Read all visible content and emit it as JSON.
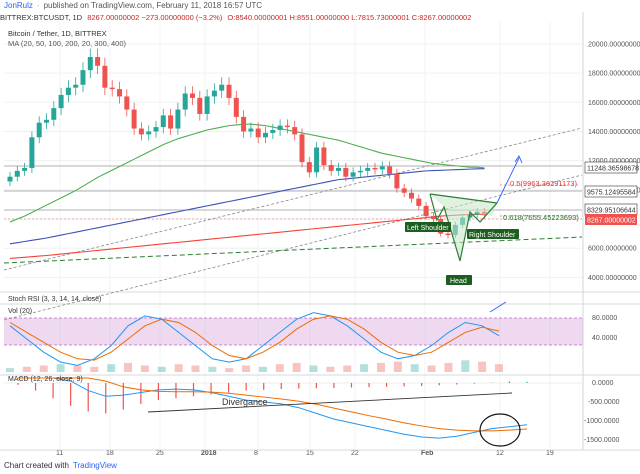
{
  "header": {
    "author": "JonRulz",
    "published": "published on TradingView.com, February 11, 2018 16:57 UTC"
  },
  "symbol_line": {
    "symbol": "BITTREX:BTCUSDT, 1D",
    "change": "8267.00000002 −273.00000000 (−3.2%)",
    "ohlc": "O:8540.00000001 H:8551.00000000 L:7815.73000001 C:8267.00000002"
  },
  "main_pane": {
    "title": "Bitcoin / Tether, 1D, BITTREX",
    "ma_label": "MA (20, 50, 100, 200, 20, 300, 400)",
    "price_labels": [
      "11248.36598678",
      "9575.12495584",
      "8329.95106644",
      "8267.00000002"
    ],
    "fib_labels": [
      "0.5(9963.36291173)",
      "0.618(7655.45223693)"
    ],
    "pattern_labels": {
      "left": "Left Shoulder",
      "head": "Head",
      "right": "Right Shoulder"
    },
    "colors": {
      "up": "#26a69a",
      "down": "#ef5350",
      "ma_green": "#4caf50",
      "ma_blue": "#3f51b5",
      "ma_red": "#f44336"
    }
  },
  "stoch_pane": {
    "label": "Stoch RSI (3, 3, 14, 14, close)",
    "ticks": [
      "80.0000",
      "40.0000"
    ]
  },
  "vol_pane": {
    "label": "Vol (20)"
  },
  "macd_pane": {
    "label": "MACD (12, 26, close, 9)",
    "annotation": "Divergance",
    "ticks": [
      "0.0000",
      "-500.0000",
      "-1000.0000",
      "-1500.0000"
    ]
  },
  "footer": {
    "text": "Chart created with",
    "brand": "TradingView"
  },
  "chart_data": {
    "type": "line",
    "title": "Bitcoin / Tether, 1D, BITTREX",
    "ylim": [
      3000,
      21500
    ],
    "y_ticks": [
      "20000.00000000",
      "18000.00000000",
      "16000.00000000",
      "14000.00000000",
      "12000.00000000",
      "10000.00000000",
      "8000.00000000",
      "6000.00000000",
      "4000.00000000"
    ],
    "x_ticks": [
      "11",
      "18",
      "25",
      "2018",
      "8",
      "15",
      "22",
      "Feb",
      "12",
      "19"
    ],
    "series": [
      {
        "name": "Bitcoin / Tether",
        "values": [
          10900,
          11300,
          11500,
          13600,
          14600,
          14800,
          15600,
          16500,
          17000,
          17200,
          18200,
          19100,
          18500,
          17000,
          16900,
          16400,
          15500,
          14200,
          13800,
          14000,
          14300,
          15100,
          14200,
          15500,
          16600,
          16300,
          15200,
          16400,
          16800,
          17200,
          16300,
          15000,
          14000,
          14200,
          13600,
          13900,
          14100,
          14400,
          14300,
          13800,
          11900,
          11200,
          12900,
          11700,
          11300,
          11500,
          10900,
          11200,
          11300,
          11500,
          11400,
          11600,
          11100,
          10100,
          9800,
          9400,
          8900,
          8200,
          8000,
          7000,
          6900,
          7600,
          8100,
          8300,
          8500,
          8267
        ]
      },
      {
        "name": "MA 50",
        "values": [
          7800,
          8000,
          8200,
          8450,
          8700,
          8950,
          9200,
          9450,
          9700,
          9950,
          10250,
          10550,
          10850,
          11100,
          11350,
          11600,
          11850,
          12100,
          12350,
          12600,
          12850,
          13100,
          13300,
          13500,
          13650,
          13800,
          13950,
          14100,
          14200,
          14300,
          14400,
          14450,
          14500,
          14500,
          14450,
          14400,
          14300,
          14200,
          14100,
          14000,
          13900,
          13800,
          13700,
          13600,
          13500,
          13400,
          13250,
          13100,
          12950,
          12800,
          12650,
          12500,
          12400,
          12300,
          12200,
          12100,
          12000,
          11900,
          11800,
          11750,
          11700,
          11650,
          11600,
          11550,
          11550,
          11500
        ]
      },
      {
        "name": "MA 100",
        "values": [
          6300,
          6380,
          6460,
          6540,
          6620,
          6700,
          6800,
          6900,
          7000,
          7100,
          7200,
          7300,
          7400,
          7500,
          7600,
          7700,
          7800,
          7900,
          8000,
          8100,
          8200,
          8300,
          8400,
          8500,
          8600,
          8700,
          8800,
          8900,
          9000,
          9100,
          9200,
          9300,
          9400,
          9500,
          9600,
          9700,
          9800,
          9900,
          10000,
          10100,
          10200,
          10300,
          10400,
          10500,
          10600,
          10700,
          10750,
          10800,
          10850,
          10900,
          10950,
          11000,
          11050,
          11100,
          11150,
          11200,
          11250,
          11300,
          11320,
          11340,
          11360,
          11380,
          11400,
          11420,
          11440,
          11450
        ]
      },
      {
        "name": "MA 200",
        "values": [
          5300,
          5340,
          5380,
          5420,
          5460,
          5500,
          5550,
          5600,
          5650,
          5700,
          5750,
          5800,
          5850,
          5900,
          5950,
          6000,
          6050,
          6100,
          6150,
          6200,
          6250,
          6300,
          6350,
          6400,
          6450,
          6500,
          6550,
          6600,
          6650,
          6700,
          6750,
          6800,
          6850,
          6900,
          6950,
          7000,
          7050,
          7100,
          7150,
          7200,
          7250,
          7300,
          7350,
          7400,
          7450,
          7500,
          7550,
          7600,
          7650,
          7700,
          7750,
          7800,
          7850,
          7900,
          7950,
          8000,
          8050,
          8100,
          8150,
          8200,
          8230,
          8260,
          8290,
          8310,
          8320,
          8330
        ]
      }
    ],
    "stoch_rsi": {
      "k": [
        70,
        50,
        30,
        15,
        10,
        20,
        40,
        70,
        85,
        80,
        60,
        40,
        20,
        15,
        20,
        40,
        60,
        80,
        90,
        85,
        70,
        50,
        30,
        20,
        25,
        40,
        60,
        75,
        70,
        55
      ],
      "d": [
        75,
        60,
        45,
        30,
        20,
        18,
        30,
        50,
        70,
        80,
        75,
        60,
        40,
        25,
        20,
        30,
        45,
        65,
        80,
        85,
        80,
        65,
        45,
        30,
        25,
        30,
        45,
        60,
        68,
        62
      ]
    },
    "volume": [
      3,
      4,
      5,
      6,
      5,
      4,
      6,
      7,
      5,
      4,
      6,
      5,
      4,
      3,
      5,
      4,
      6,
      7,
      5,
      4,
      5,
      6,
      7,
      8,
      6,
      5,
      7,
      9,
      8,
      6
    ],
    "macd": {
      "histogram": [
        -50,
        -200,
        -400,
        -600,
        -750,
        -800,
        -700,
        -550,
        -450,
        -400,
        -350,
        -300,
        -250,
        -200,
        -180,
        -160,
        -150,
        -140,
        -130,
        -120,
        -110,
        -100,
        -90,
        -80,
        -60,
        -40,
        -20,
        10,
        40,
        30
      ],
      "macd": [
        900,
        650,
        350,
        50,
        -200,
        -350,
        -320,
        -250,
        -180,
        -160,
        -180,
        -250,
        -350,
        -450,
        -500,
        -550,
        -650,
        -800,
        -950,
        -1050,
        -1150,
        -1250,
        -1350,
        -1420,
        -1450,
        -1400,
        -1300,
        -1200,
        -1150,
        -1100
      ],
      "signal": [
        600,
        650,
        600,
        450,
        250,
        50,
        -100,
        -180,
        -220,
        -230,
        -230,
        -240,
        -270,
        -320,
        -370,
        -420,
        -480,
        -560,
        -660,
        -760,
        -860,
        -950,
        -1050,
        -1130,
        -1200,
        -1240,
        -1260,
        -1260,
        -1240,
        -1210
      ]
    }
  }
}
